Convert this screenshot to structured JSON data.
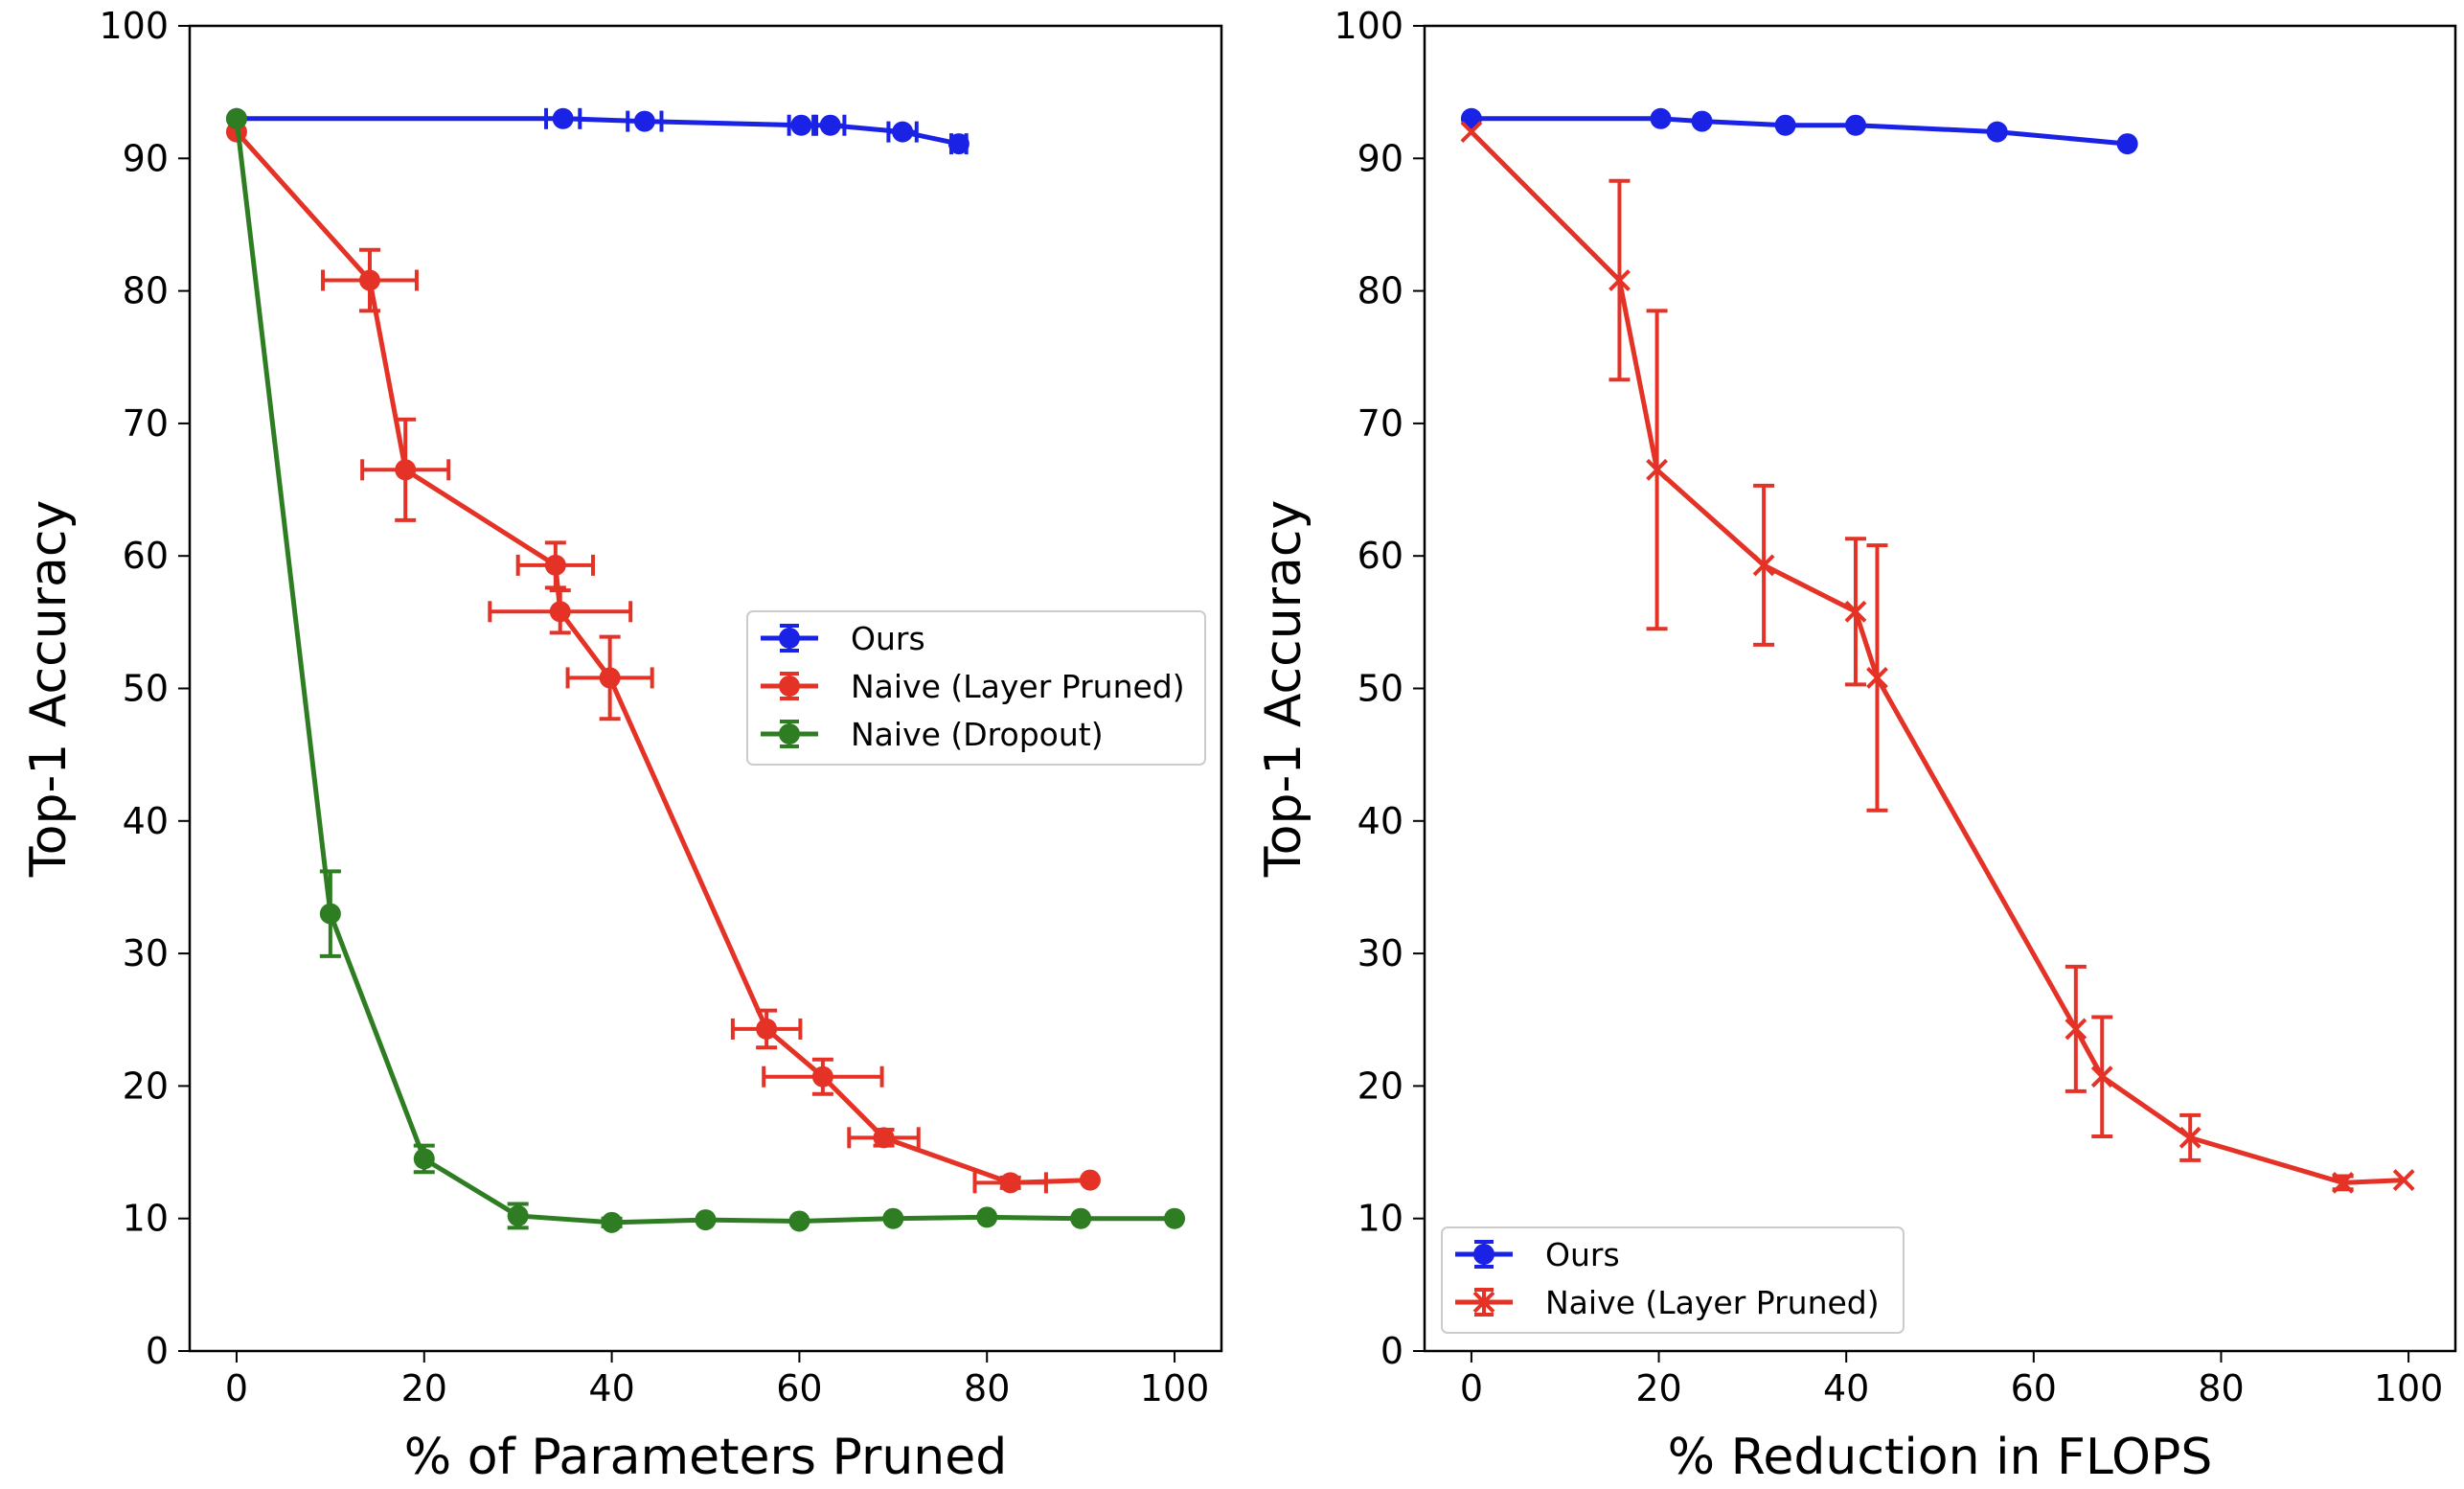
{
  "chart_data": [
    {
      "type": "line",
      "xlabel": "% of Parameters Pruned",
      "ylabel": "Top-1 Accuracy",
      "xlim": [
        -5,
        105
      ],
      "ylim": [
        0,
        100
      ],
      "xticks": [
        0,
        20,
        40,
        60,
        80,
        100
      ],
      "yticks": [
        0,
        10,
        20,
        30,
        40,
        50,
        60,
        70,
        80,
        90,
        100
      ],
      "legend_position": "center-right",
      "series": [
        {
          "name": "Ours",
          "color": "#1a22e6",
          "marker": "circle",
          "x": [
            0,
            34.8,
            43.5,
            60.2,
            63.3,
            71.0,
            77.0
          ],
          "y": [
            93.0,
            93.0,
            92.8,
            92.5,
            92.5,
            92.0,
            91.1
          ],
          "xerr": [
            0,
            1.8,
            1.8,
            1.3,
            1.5,
            1.5,
            0.8
          ],
          "yerr": [
            0,
            0,
            0,
            0,
            0,
            0,
            0
          ]
        },
        {
          "name": "Naive (Layer Pruned)",
          "color": "#e53227",
          "marker": "circle",
          "x": [
            0,
            14.2,
            18.0,
            34.0,
            34.5,
            39.8,
            56.5,
            62.5,
            69.0,
            82.5,
            91.0
          ],
          "y": [
            92.0,
            80.8,
            66.5,
            59.3,
            55.8,
            50.8,
            24.3,
            20.7,
            16.1,
            12.7,
            12.9
          ],
          "xerr": [
            0,
            5.0,
            4.6,
            4.0,
            7.5,
            4.5,
            3.6,
            6.3,
            3.7,
            3.8,
            0
          ],
          "yerr": [
            0,
            2.3,
            3.8,
            1.7,
            1.6,
            3.1,
            1.4,
            1.3,
            0.6,
            0.4,
            0
          ]
        },
        {
          "name": "Naive (Dropout)",
          "color": "#2e7d22",
          "marker": "circle",
          "x": [
            0,
            10,
            20,
            30,
            40,
            50,
            60,
            70,
            80,
            90,
            100
          ],
          "y": [
            93.0,
            33.0,
            14.5,
            10.2,
            9.7,
            9.9,
            9.8,
            10.0,
            10.1,
            10.0,
            10.0
          ],
          "xerr": [
            0,
            0,
            0,
            0,
            0,
            0,
            0,
            0,
            0,
            0,
            0
          ],
          "yerr": [
            0,
            3.2,
            1.0,
            0.9,
            0.3,
            0,
            0,
            0,
            0,
            0,
            0
          ]
        }
      ]
    },
    {
      "type": "line",
      "xlabel": "% Reduction in FLOPS",
      "ylabel": "Top-1 Accuracy",
      "xlim": [
        -5,
        105
      ],
      "ylim": [
        0,
        100
      ],
      "xticks": [
        0,
        20,
        40,
        60,
        80,
        100
      ],
      "yticks": [
        0,
        10,
        20,
        30,
        40,
        50,
        60,
        70,
        80,
        90,
        100
      ],
      "legend_position": "lower-left",
      "series": [
        {
          "name": "Ours",
          "color": "#1a22e6",
          "marker": "circle",
          "x": [
            0,
            20.2,
            24.6,
            33.5,
            41.0,
            56.1,
            70.0
          ],
          "y": [
            93.0,
            93.0,
            92.8,
            92.5,
            92.5,
            92.0,
            91.1
          ],
          "xerr": [
            0,
            0,
            0,
            0,
            0,
            0,
            0
          ],
          "yerr": [
            0,
            0,
            0,
            0,
            0,
            0,
            0
          ]
        },
        {
          "name": "Naive (Layer Pruned)",
          "color": "#e53227",
          "marker": "x",
          "x": [
            0,
            15.8,
            19.8,
            31.2,
            41.0,
            43.3,
            64.5,
            67.3,
            76.7,
            93.0,
            99.5
          ],
          "y": [
            92.0,
            80.8,
            66.5,
            59.3,
            55.8,
            50.8,
            24.3,
            20.7,
            16.1,
            12.7,
            12.9
          ],
          "xerr": [
            0,
            0,
            0,
            0,
            0,
            0,
            0,
            0,
            0,
            0,
            0
          ],
          "yerr": [
            0,
            7.5,
            12.0,
            6.0,
            5.5,
            10.0,
            4.7,
            4.5,
            1.7,
            0.5,
            0
          ]
        }
      ]
    }
  ]
}
